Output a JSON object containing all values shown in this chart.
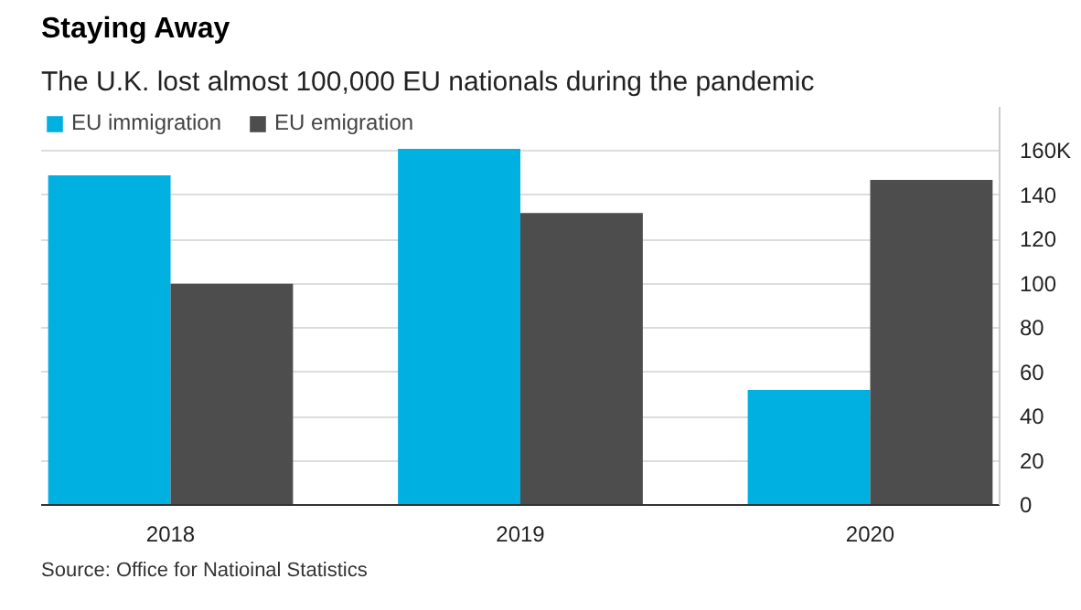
{
  "chart_data": {
    "type": "bar",
    "title": "Staying Away",
    "subtitle": "The U.K. lost almost 100,000 EU nationals during the pandemic",
    "categories": [
      "2018",
      "2019",
      "2020"
    ],
    "series": [
      {
        "name": "EU immigration",
        "color": "#00b0e0",
        "values": [
          149,
          161,
          52
        ]
      },
      {
        "name": "EU emigration",
        "color": "#4d4d4d",
        "values": [
          100,
          132,
          147
        ]
      }
    ],
    "ylim": [
      0,
      180
    ],
    "yticks": [
      0,
      20,
      40,
      60,
      80,
      100,
      120,
      140,
      {
        "value": 160,
        "label": "160K"
      }
    ],
    "grid": "y",
    "legend": "top left",
    "annotations": [
      "Source: Office for Natioinal Statistics"
    ]
  }
}
